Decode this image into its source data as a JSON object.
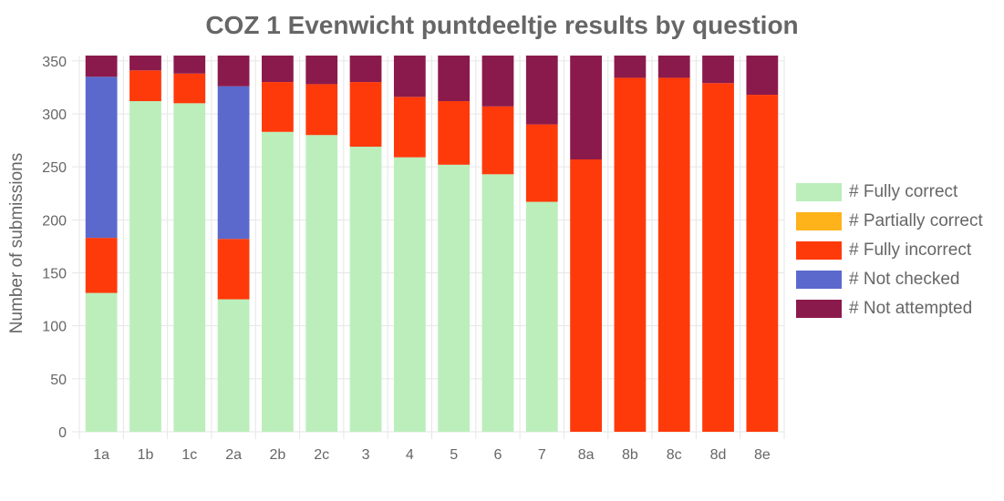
{
  "chart_data": {
    "type": "bar",
    "stacked": true,
    "title": "COZ 1 Evenwicht puntdeeltje results by question",
    "ylabel": "Number of submissions",
    "xlabel": "",
    "ylim": [
      0,
      355
    ],
    "yticks": [
      0,
      50,
      100,
      150,
      200,
      250,
      300,
      350
    ],
    "grid": true,
    "legend_position": "right",
    "categories": [
      "1a",
      "1b",
      "1c",
      "2a",
      "2b",
      "2c",
      "3",
      "4",
      "5",
      "6",
      "7",
      "8a",
      "8b",
      "8c",
      "8d",
      "8e"
    ],
    "series": [
      {
        "name": "# Fully correct",
        "color": "#bbeebb",
        "values": [
          131,
          312,
          310,
          125,
          283,
          280,
          269,
          259,
          252,
          243,
          217,
          0,
          0,
          0,
          0,
          0
        ]
      },
      {
        "name": "# Partially correct",
        "color": "#ffb31a",
        "values": [
          0,
          0,
          0,
          0,
          0,
          0,
          0,
          0,
          0,
          0,
          0,
          0,
          0,
          0,
          0,
          0
        ]
      },
      {
        "name": "# Fully incorrect",
        "color": "#ff3a0a",
        "values": [
          52,
          29,
          28,
          57,
          47,
          48,
          61,
          57,
          60,
          64,
          73,
          257,
          334,
          334,
          329,
          318
        ]
      },
      {
        "name": "# Not checked",
        "color": "#5b69cc",
        "values": [
          152,
          0,
          0,
          144,
          0,
          0,
          0,
          0,
          0,
          0,
          0,
          0,
          0,
          0,
          0,
          0
        ]
      },
      {
        "name": "# Not attempted",
        "color": "#8b1a4c",
        "values": [
          20,
          14,
          17,
          29,
          25,
          27,
          25,
          39,
          43,
          48,
          65,
          98,
          21,
          21,
          26,
          37
        ]
      }
    ]
  }
}
